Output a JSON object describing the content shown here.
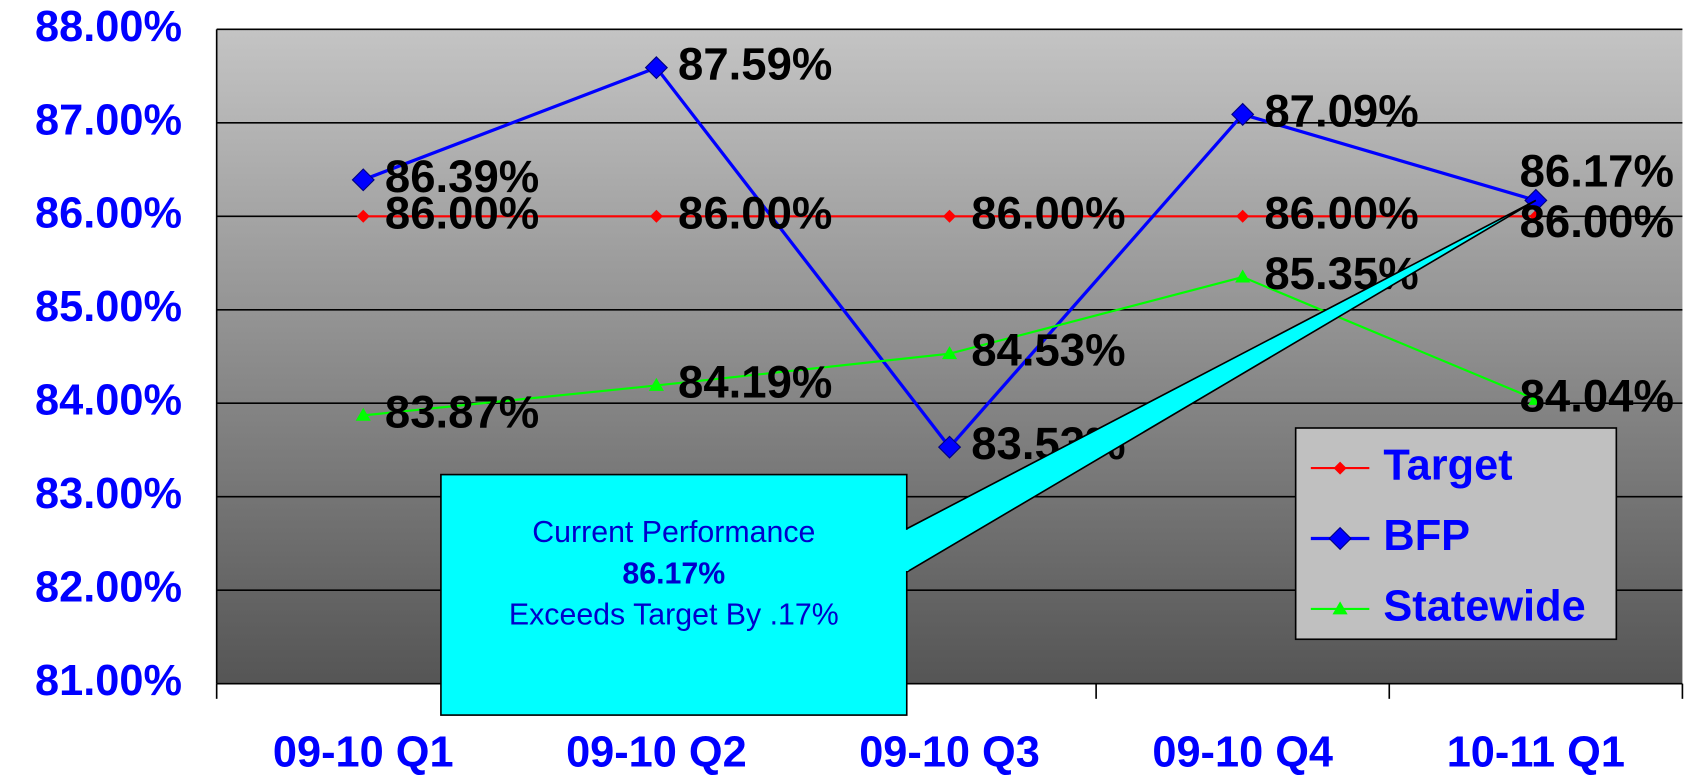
{
  "chart_data": {
    "type": "line",
    "categories": [
      "09-10 Q1",
      "09-10 Q2",
      "09-10 Q3",
      "09-10 Q4",
      "10-11 Q1"
    ],
    "series": [
      {
        "name": "Target",
        "color": "#ff0000",
        "marker": "diamond-small",
        "values": [
          86.0,
          86.0,
          86.0,
          86.0,
          86.0
        ],
        "value_labels": [
          "86.00%",
          "86.00%",
          "86.00%",
          "86.00%",
          "86.00%"
        ]
      },
      {
        "name": "BFP",
        "color": "#0000ff",
        "marker": "diamond",
        "values": [
          86.39,
          87.59,
          83.53,
          87.09,
          86.17
        ],
        "value_labels": [
          "86.39%",
          "87.59%",
          "83.53%",
          "87.09%",
          "86.17%"
        ]
      },
      {
        "name": "Statewide",
        "color": "#00ff00",
        "marker": "triangle",
        "values": [
          83.87,
          84.19,
          84.53,
          85.35,
          84.04
        ],
        "value_labels": [
          "83.87%",
          "84.19%",
          "84.53%",
          "85.35%",
          "84.04%"
        ]
      }
    ],
    "ylim": [
      81,
      88
    ],
    "yticks": [
      {
        "value": 81,
        "label": "81.00%"
      },
      {
        "value": 82,
        "label": "82.00%"
      },
      {
        "value": 83,
        "label": "83.00%"
      },
      {
        "value": 84,
        "label": "84.00%"
      },
      {
        "value": 85,
        "label": "85.00%"
      },
      {
        "value": 86,
        "label": "86.00%"
      },
      {
        "value": 87,
        "label": "87.00%"
      },
      {
        "value": 88,
        "label": "88.00%"
      }
    ],
    "grid": true,
    "legend": "lower right",
    "annotation": {
      "lines": [
        "Current Performance",
        "86.17%",
        "Exceeds Target By .17%"
      ],
      "target_category": 4,
      "target_series": 1
    }
  }
}
